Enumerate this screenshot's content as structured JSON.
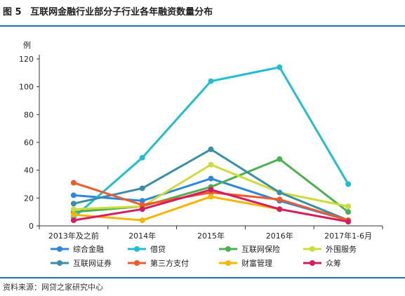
{
  "figure": {
    "number": "图 5",
    "title": "互联网金融行业部分子行业各年融资数量分布",
    "source": "资料来源：网贷之家研究中心"
  },
  "chart_data": {
    "type": "line",
    "ylabel": "例",
    "ylim": [
      0,
      120
    ],
    "yticks": [
      0,
      20,
      40,
      60,
      80,
      100,
      120
    ],
    "grid": false,
    "legend_position": "bottom",
    "categories": [
      "2013年及之前",
      "2014年",
      "2015年",
      "2016年",
      "2017年1-6月"
    ],
    "series": [
      {
        "name": "综合金融",
        "color": "#2e86de",
        "values": [
          22,
          18,
          34,
          18,
          4
        ]
      },
      {
        "name": "借贷",
        "color": "#1fbfcf",
        "values": [
          6,
          49,
          104,
          114,
          30
        ]
      },
      {
        "name": "互联网保险",
        "color": "#4caf50",
        "values": [
          10,
          14,
          28,
          48,
          10
        ]
      },
      {
        "name": "外围服务",
        "color": "#cddc39",
        "values": [
          12,
          14,
          44,
          24,
          14
        ]
      },
      {
        "name": "互联网证券",
        "color": "#3a8fa8",
        "values": [
          16,
          27,
          55,
          24,
          4
        ]
      },
      {
        "name": "第三方支付",
        "color": "#f05a28",
        "values": [
          31,
          15,
          24,
          19,
          4
        ]
      },
      {
        "name": "财富管理",
        "color": "#f7b500",
        "values": [
          8,
          4,
          21,
          12,
          3
        ]
      },
      {
        "name": "众筹",
        "color": "#d81b60",
        "values": [
          4,
          12,
          26,
          12,
          3
        ]
      }
    ]
  }
}
